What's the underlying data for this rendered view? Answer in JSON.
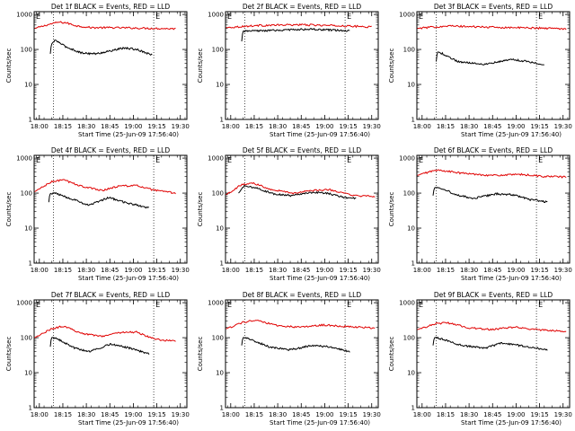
{
  "chart_data": [
    {
      "type": "line",
      "title": "Det 1f BLACK = Events, RED = LLD",
      "xlabel": "Start Time (25-Jun-09 17:56:40)",
      "ylabel": "Counts/sec",
      "yscale": "log",
      "ylim": [
        1,
        1200
      ],
      "x_ticks": [
        "18:00",
        "18:15",
        "18:30",
        "18:45",
        "19:00",
        "19:15",
        "19:30"
      ],
      "y_ticks": [
        "1",
        "10",
        "100",
        "1000"
      ],
      "markers": [
        "E",
        "E"
      ],
      "series": [
        {
          "color": "#e00000",
          "start": "17:57",
          "end": "19:27",
          "knots": [
            [
              0,
              400
            ],
            [
              0.05,
              450
            ],
            [
              0.1,
              520
            ],
            [
              0.17,
              600
            ],
            [
              0.22,
              580
            ],
            [
              0.3,
              470
            ],
            [
              0.4,
              420
            ],
            [
              0.55,
              420
            ],
            [
              0.7,
              410
            ],
            [
              0.85,
              400
            ],
            [
              1,
              390
            ]
          ]
        },
        {
          "color": "#000000",
          "start": "18:07",
          "end": "19:12",
          "knots": [
            [
              0,
              75
            ],
            [
              0.01,
              140
            ],
            [
              0.05,
              185
            ],
            [
              0.15,
              120
            ],
            [
              0.3,
              80
            ],
            [
              0.45,
              75
            ],
            [
              0.6,
              92
            ],
            [
              0.72,
              110
            ],
            [
              0.85,
              100
            ],
            [
              1,
              70
            ]
          ]
        }
      ]
    },
    {
      "type": "line",
      "title": "Det 2f BLACK = Events, RED = LLD",
      "xlabel": "Start Time (25-Jun-09 17:56:40)",
      "ylabel": "Counts/sec",
      "yscale": "log",
      "ylim": [
        1,
        1200
      ],
      "x_ticks": [
        "18:00",
        "18:15",
        "18:30",
        "18:45",
        "19:00",
        "19:15",
        "19:30"
      ],
      "y_ticks": [
        "1",
        "10",
        "100",
        "1000"
      ],
      "markers": [
        "E",
        "E"
      ],
      "series": [
        {
          "color": "#e00000",
          "start": "17:57",
          "end": "19:30",
          "knots": [
            [
              0,
              420
            ],
            [
              0.2,
              480
            ],
            [
              0.5,
              510
            ],
            [
              0.8,
              470
            ],
            [
              1,
              440
            ]
          ]
        },
        {
          "color": "#000000",
          "start": "18:07",
          "end": "19:16",
          "knots": [
            [
              0,
              170
            ],
            [
              0.01,
              330
            ],
            [
              0.3,
              350
            ],
            [
              0.6,
              380
            ],
            [
              1,
              340
            ]
          ]
        }
      ]
    },
    {
      "type": "line",
      "title": "Det 3f BLACK = Events, RED = LLD",
      "xlabel": "Start Time (25-Jun-09 17:56:40)",
      "ylabel": "Counts/sec",
      "yscale": "log",
      "ylim": [
        1,
        1200
      ],
      "x_ticks": [
        "18:00",
        "18:15",
        "18:30",
        "18:45",
        "19:00",
        "19:15",
        "19:30"
      ],
      "y_ticks": [
        "1",
        "10",
        "100",
        "1000"
      ],
      "markers": [
        "E",
        "E"
      ],
      "series": [
        {
          "color": "#e00000",
          "start": "17:57",
          "end": "19:32",
          "knots": [
            [
              0,
              400
            ],
            [
              0.2,
              470
            ],
            [
              0.5,
              430
            ],
            [
              0.8,
              410
            ],
            [
              1,
              390
            ]
          ]
        },
        {
          "color": "#000000",
          "start": "18:09",
          "end": "19:18",
          "knots": [
            [
              0,
              45
            ],
            [
              0.01,
              85
            ],
            [
              0.06,
              75
            ],
            [
              0.2,
              45
            ],
            [
              0.45,
              38
            ],
            [
              0.7,
              52
            ],
            [
              0.85,
              45
            ],
            [
              1,
              35
            ]
          ]
        }
      ]
    },
    {
      "type": "line",
      "title": "Det 4f BLACK = Events, RED = LLD",
      "xlabel": "Start Time (25-Jun-09 17:56:40)",
      "ylabel": "Counts/sec",
      "yscale": "log",
      "ylim": [
        1,
        1200
      ],
      "x_ticks": [
        "18:00",
        "18:15",
        "18:30",
        "18:45",
        "19:00",
        "19:15",
        "19:30"
      ],
      "y_ticks": [
        "1",
        "10",
        "100",
        "1000"
      ],
      "markers": [
        "E",
        "E"
      ],
      "series": [
        {
          "color": "#e00000",
          "start": "17:57",
          "end": "19:27",
          "knots": [
            [
              0,
              110
            ],
            [
              0.12,
              210
            ],
            [
              0.2,
              240
            ],
            [
              0.35,
              150
            ],
            [
              0.48,
              120
            ],
            [
              0.6,
              160
            ],
            [
              0.72,
              165
            ],
            [
              0.85,
              120
            ],
            [
              1,
              100
            ]
          ]
        },
        {
          "color": "#000000",
          "start": "18:06",
          "end": "19:10",
          "knots": [
            [
              0,
              55
            ],
            [
              0.01,
              95
            ],
            [
              0.06,
              100
            ],
            [
              0.25,
              65
            ],
            [
              0.4,
              45
            ],
            [
              0.6,
              75
            ],
            [
              0.75,
              55
            ],
            [
              1,
              38
            ]
          ]
        }
      ]
    },
    {
      "type": "line",
      "title": "Det 5f BLACK = Events, RED = LLD",
      "xlabel": "Start Time (25-Jun-09 17:56:40)",
      "ylabel": "Counts/sec",
      "yscale": "log",
      "ylim": [
        1,
        1200
      ],
      "x_ticks": [
        "18:00",
        "18:15",
        "18:30",
        "18:45",
        "19:00",
        "19:15",
        "19:30"
      ],
      "y_ticks": [
        "1",
        "10",
        "100",
        "1000"
      ],
      "markers": [
        "E",
        "E"
      ],
      "series": [
        {
          "color": "#e00000",
          "start": "17:57",
          "end": "19:32",
          "knots": [
            [
              0,
              90
            ],
            [
              0.1,
              170
            ],
            [
              0.18,
              195
            ],
            [
              0.3,
              130
            ],
            [
              0.45,
              100
            ],
            [
              0.6,
              120
            ],
            [
              0.7,
              125
            ],
            [
              0.85,
              85
            ],
            [
              1,
              80
            ]
          ]
        },
        {
          "color": "#000000",
          "start": "18:05",
          "end": "19:20",
          "knots": [
            [
              0,
              100
            ],
            [
              0.05,
              160
            ],
            [
              0.15,
              140
            ],
            [
              0.3,
              95
            ],
            [
              0.45,
              85
            ],
            [
              0.6,
              105
            ],
            [
              0.75,
              100
            ],
            [
              0.9,
              75
            ],
            [
              1,
              70
            ]
          ]
        }
      ]
    },
    {
      "type": "line",
      "title": "Det 6f BLACK = Events, RED = LLD",
      "xlabel": "Start Time (25-Jun-09 17:56:40)",
      "ylabel": "Counts/sec",
      "yscale": "log",
      "ylim": [
        1,
        1200
      ],
      "x_ticks": [
        "18:00",
        "18:15",
        "18:30",
        "18:45",
        "19:00",
        "19:15",
        "19:30"
      ],
      "y_ticks": [
        "1",
        "10",
        "100",
        "1000"
      ],
      "markers": [
        "E",
        "E"
      ],
      "series": [
        {
          "color": "#e00000",
          "start": "17:57",
          "end": "19:32",
          "knots": [
            [
              0,
              320
            ],
            [
              0.1,
              430
            ],
            [
              0.15,
              450
            ],
            [
              0.3,
              370
            ],
            [
              0.5,
              320
            ],
            [
              0.7,
              340
            ],
            [
              0.85,
              300
            ],
            [
              1,
              290
            ]
          ]
        },
        {
          "color": "#000000",
          "start": "18:07",
          "end": "19:20",
          "knots": [
            [
              0,
              85
            ],
            [
              0.01,
              140
            ],
            [
              0.05,
              150
            ],
            [
              0.2,
              90
            ],
            [
              0.35,
              70
            ],
            [
              0.55,
              95
            ],
            [
              0.7,
              90
            ],
            [
              0.85,
              65
            ],
            [
              1,
              55
            ]
          ]
        }
      ]
    },
    {
      "type": "line",
      "title": "Det 7f BLACK = Events, RED = LLD",
      "xlabel": "Start Time (25-Jun-09 17:56:40)",
      "ylabel": "Counts/sec",
      "yscale": "log",
      "ylim": [
        1,
        1200
      ],
      "x_ticks": [
        "18:00",
        "18:15",
        "18:30",
        "18:45",
        "19:00",
        "19:15",
        "19:30"
      ],
      "y_ticks": [
        "1",
        "10",
        "100",
        "1000"
      ],
      "markers": [
        "E",
        "E"
      ],
      "series": [
        {
          "color": "#e00000",
          "start": "17:57",
          "end": "19:27",
          "knots": [
            [
              0,
              100
            ],
            [
              0.12,
              180
            ],
            [
              0.2,
              210
            ],
            [
              0.35,
              130
            ],
            [
              0.48,
              110
            ],
            [
              0.6,
              140
            ],
            [
              0.72,
              145
            ],
            [
              0.85,
              90
            ],
            [
              1,
              80
            ]
          ]
        },
        {
          "color": "#000000",
          "start": "18:07",
          "end": "19:10",
          "knots": [
            [
              0,
              55
            ],
            [
              0.01,
              100
            ],
            [
              0.06,
              95
            ],
            [
              0.25,
              50
            ],
            [
              0.4,
              40
            ],
            [
              0.6,
              65
            ],
            [
              0.75,
              55
            ],
            [
              1,
              35
            ]
          ]
        }
      ]
    },
    {
      "type": "line",
      "title": "Det 8f BLACK = Events, RED = LLD",
      "xlabel": "Start Time (25-Jun-09 17:56:40)",
      "ylabel": "Counts/sec",
      "yscale": "log",
      "ylim": [
        1,
        1200
      ],
      "x_ticks": [
        "18:00",
        "18:15",
        "18:30",
        "18:45",
        "19:00",
        "19:15",
        "19:30"
      ],
      "y_ticks": [
        "1",
        "10",
        "100",
        "1000"
      ],
      "markers": [
        "E",
        "E"
      ],
      "series": [
        {
          "color": "#e00000",
          "start": "17:57",
          "end": "19:32",
          "knots": [
            [
              0,
              180
            ],
            [
              0.12,
              280
            ],
            [
              0.2,
              310
            ],
            [
              0.35,
              220
            ],
            [
              0.5,
              200
            ],
            [
              0.65,
              230
            ],
            [
              0.8,
              210
            ],
            [
              1,
              190
            ]
          ]
        },
        {
          "color": "#000000",
          "start": "18:07",
          "end": "19:16",
          "knots": [
            [
              0,
              60
            ],
            [
              0.01,
              100
            ],
            [
              0.06,
              95
            ],
            [
              0.25,
              55
            ],
            [
              0.45,
              45
            ],
            [
              0.65,
              60
            ],
            [
              0.8,
              55
            ],
            [
              1,
              40
            ]
          ]
        }
      ]
    },
    {
      "type": "line",
      "title": "Det 9f BLACK = Events, RED = LLD",
      "xlabel": "Start Time (25-Jun-09 17:56:40)",
      "ylabel": "Counts/sec",
      "yscale": "log",
      "ylim": [
        1,
        1200
      ],
      "x_ticks": [
        "18:00",
        "18:15",
        "18:30",
        "18:45",
        "19:00",
        "19:15",
        "19:30"
      ],
      "y_ticks": [
        "1",
        "10",
        "100",
        "1000"
      ],
      "markers": [
        "E",
        "E"
      ],
      "series": [
        {
          "color": "#e00000",
          "start": "17:57",
          "end": "19:32",
          "knots": [
            [
              0,
              170
            ],
            [
              0.12,
              250
            ],
            [
              0.2,
              270
            ],
            [
              0.35,
              190
            ],
            [
              0.5,
              170
            ],
            [
              0.65,
              200
            ],
            [
              0.8,
              170
            ],
            [
              1,
              150
            ]
          ]
        },
        {
          "color": "#000000",
          "start": "18:07",
          "end": "19:20",
          "knots": [
            [
              0,
              60
            ],
            [
              0.01,
              100
            ],
            [
              0.06,
              95
            ],
            [
              0.25,
              60
            ],
            [
              0.45,
              50
            ],
            [
              0.6,
              70
            ],
            [
              0.75,
              60
            ],
            [
              1,
              45
            ]
          ]
        }
      ]
    }
  ]
}
